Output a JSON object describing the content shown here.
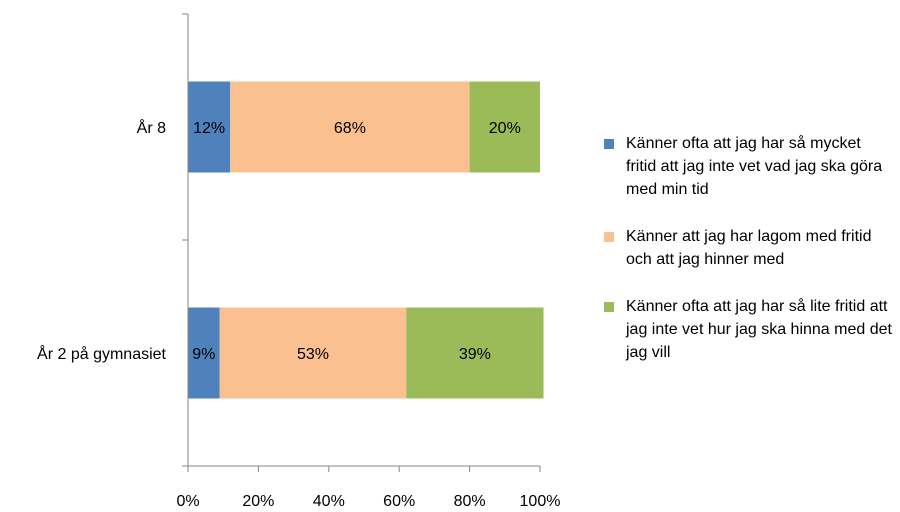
{
  "chart_data": {
    "type": "bar",
    "orientation": "horizontal",
    "stacked": true,
    "categories": [
      "År 8",
      "År 2 på gymnasiet"
    ],
    "series": [
      {
        "name": "Känner ofta att jag har så mycket fritid att jag inte vet vad jag ska göra med min tid",
        "values": [
          12,
          9
        ],
        "labels": [
          "12%",
          "9%"
        ],
        "color": "#4f81bd"
      },
      {
        "name": "Känner att jag har lagom med fritid och att jag hinner med",
        "values": [
          68,
          53
        ],
        "labels": [
          "68%",
          "53%"
        ],
        "color": "#fac090"
      },
      {
        "name": "Känner ofta att jag har så lite fritid att jag inte vet hur jag ska hinna med det jag vill",
        "values": [
          20,
          39
        ],
        "labels": [
          "20%",
          "39%"
        ],
        "color": "#9bbb59"
      }
    ],
    "x_ticks": [
      "0%",
      "20%",
      "40%",
      "60%",
      "80%",
      "100%"
    ],
    "xlim": [
      0,
      100
    ],
    "grid": false,
    "legend_position": "right"
  }
}
